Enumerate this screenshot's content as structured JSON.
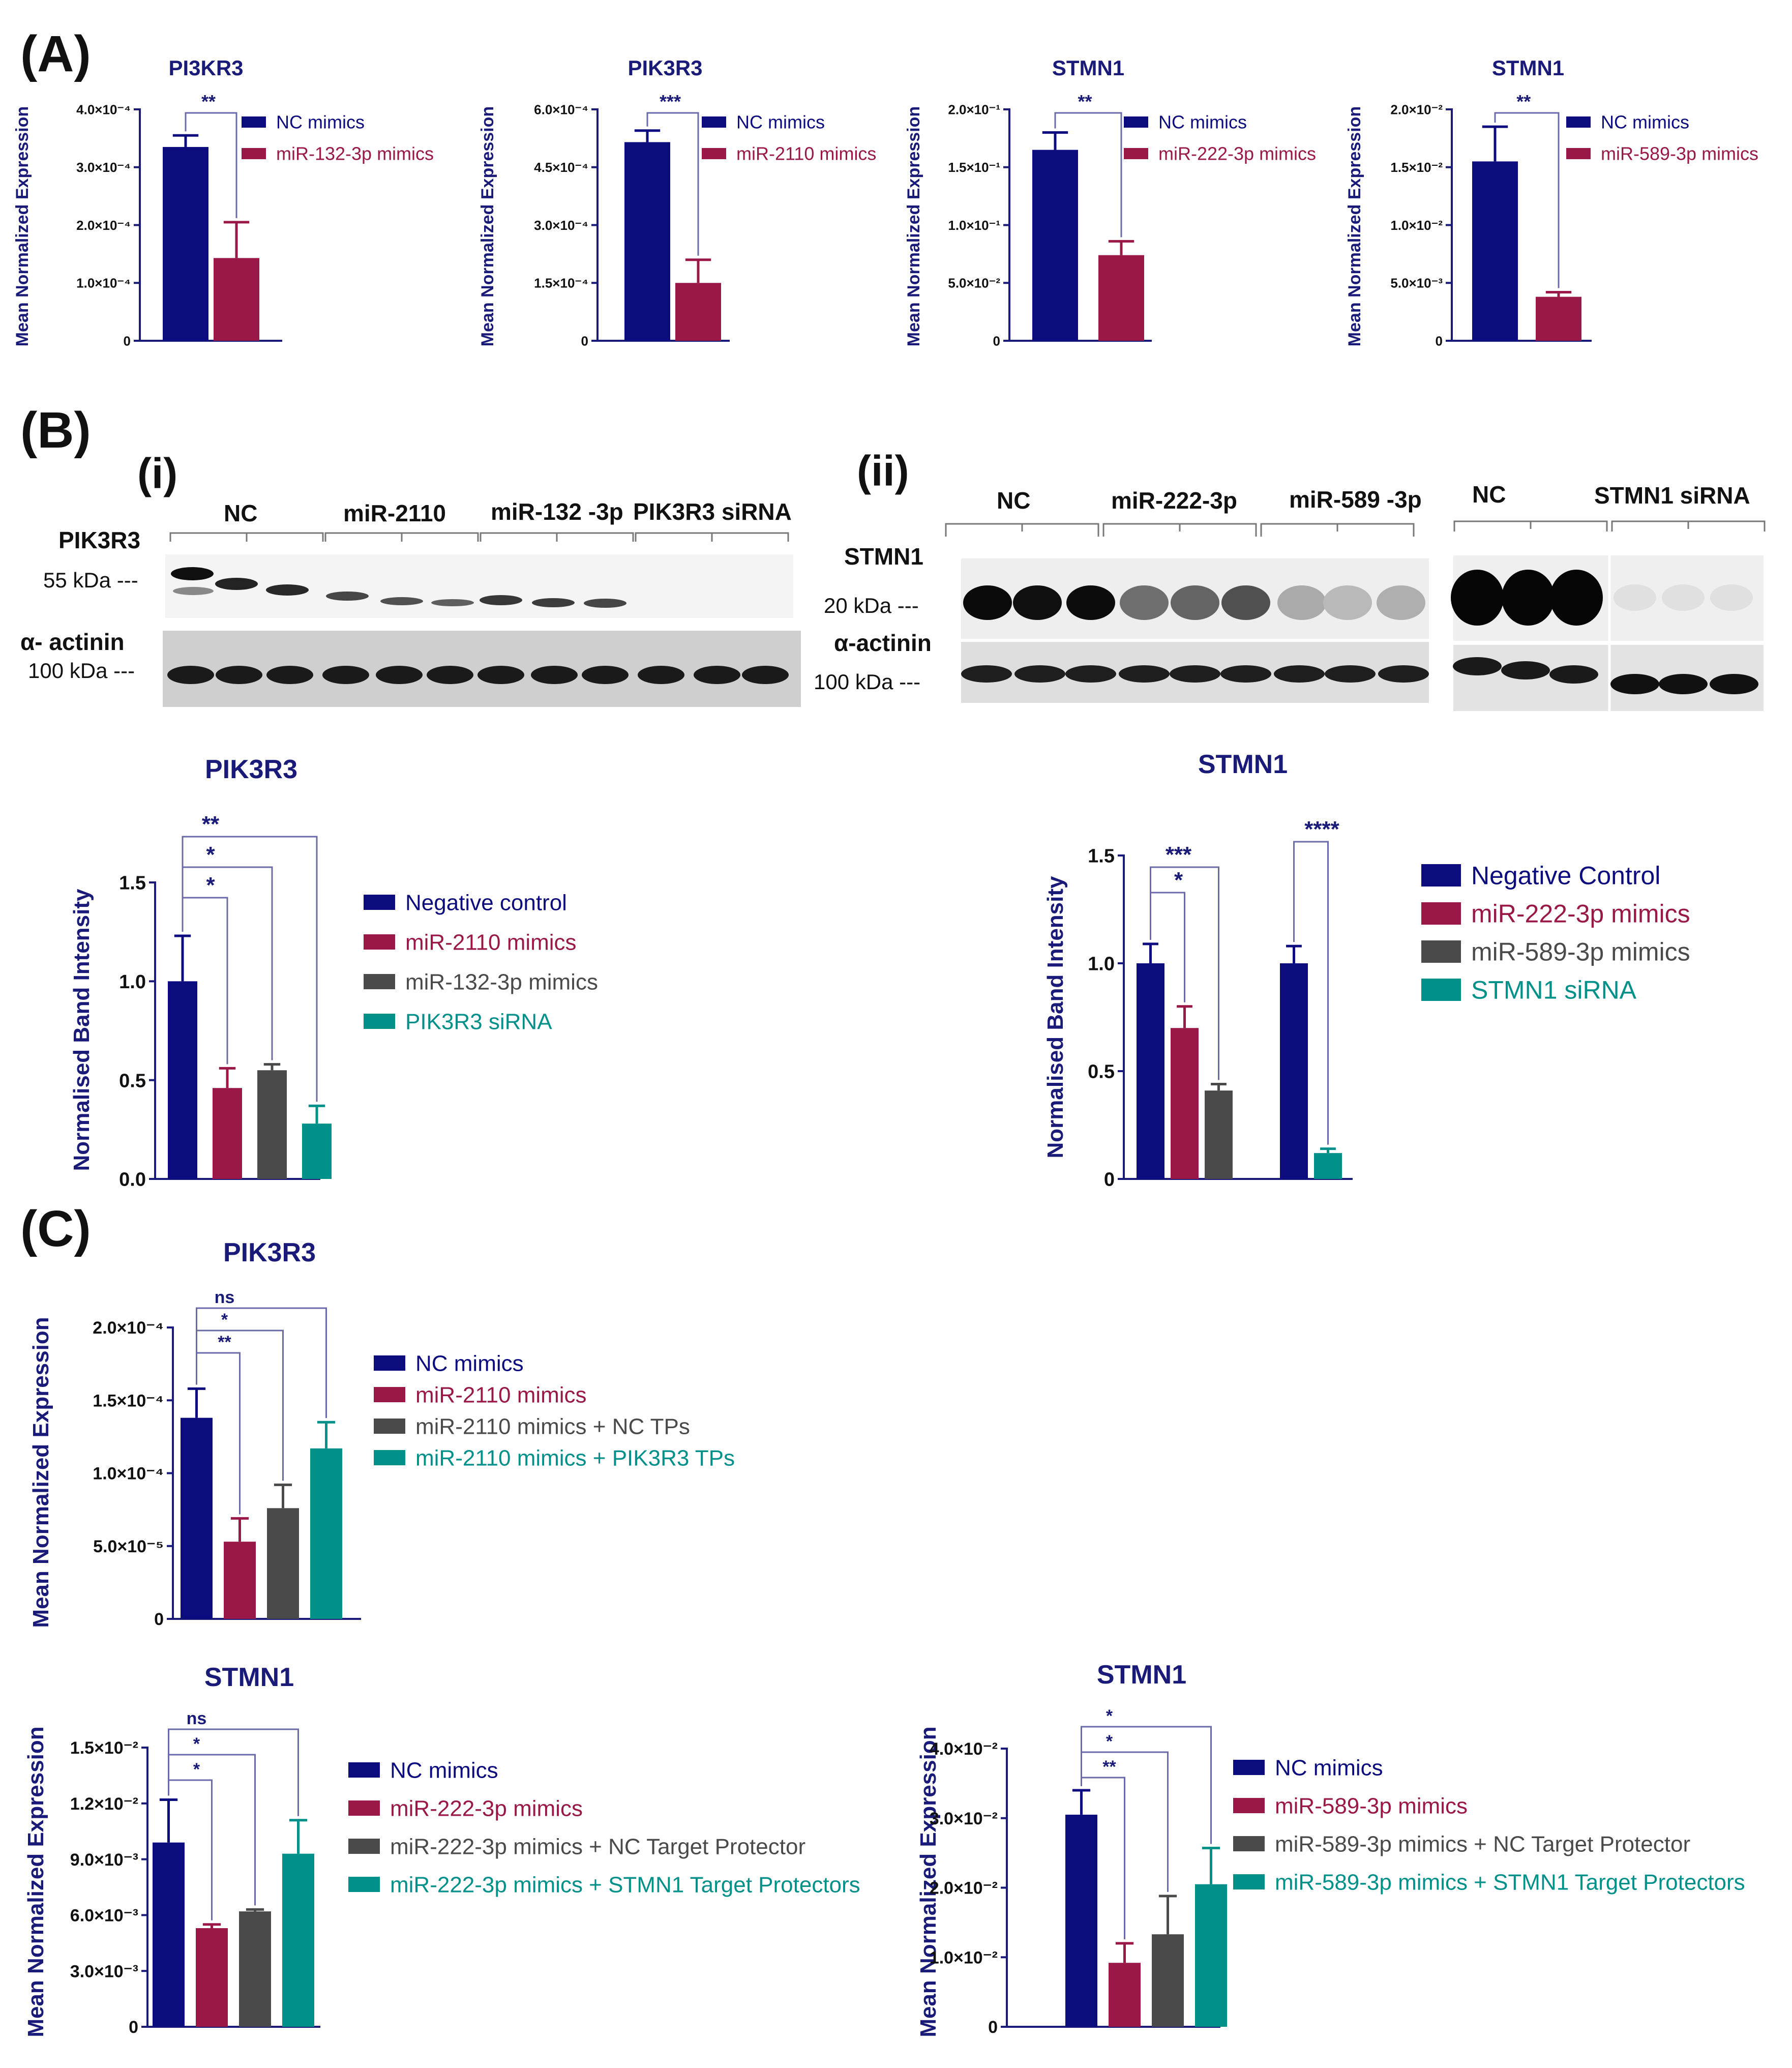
{
  "colors": {
    "navy": "#0c0c7e",
    "crimson": "#9a1848",
    "gray": "#4a4a4a",
    "teal": "#00908a",
    "axis": "#1a1a78"
  },
  "panels": {
    "A": "(A)",
    "B": "(B)",
    "C": "(C)"
  },
  "blot_i": {
    "label": "(i)",
    "groups": [
      "NC",
      "miR-2110",
      "miR-132 -3p",
      "PIK3R3 siRNA"
    ],
    "protein": "PIK3R3",
    "protein_kda": "55 kDa ---",
    "loading": "α- actinin",
    "loading_kda": "100 kDa ---"
  },
  "blot_ii": {
    "label": "(ii)",
    "groups": [
      "NC",
      "miR-222-3p",
      "miR-589 -3p"
    ],
    "groups2": [
      "NC",
      "STMN1 siRNA"
    ],
    "protein": "STMN1",
    "protein_kda": "20 kDa ---",
    "loading": "α-actinin",
    "loading_kda": "100 kDa ---"
  },
  "chart_data": [
    {
      "id": "A1",
      "panel": "A",
      "type": "bar",
      "title": "PI3KR3",
      "ylabel": "Mean Normalized Expression",
      "ylim": [
        0,
        0.0004
      ],
      "yticks": [
        "0",
        "1.0×10⁻⁴",
        "2.0×10⁻⁴",
        "3.0×10⁻⁴",
        "4.0×10⁻⁴"
      ],
      "series": [
        {
          "name": "NC mimics",
          "value": 0.000335,
          "error": 2e-05,
          "color": "navy"
        },
        {
          "name": "miR-132-3p mimics",
          "value": 0.000143,
          "error": 6.2e-05,
          "color": "crimson"
        }
      ],
      "significance": [
        {
          "from": 0,
          "to": 1,
          "label": "**"
        }
      ]
    },
    {
      "id": "A2",
      "panel": "A",
      "type": "bar",
      "title": "PIK3R3",
      "ylabel": "Mean Normalized Expression",
      "ylim": [
        0,
        0.0006
      ],
      "yticks": [
        "0",
        "1.5×10⁻⁴",
        "3.0×10⁻⁴",
        "4.5×10⁻⁴",
        "6.0×10⁻⁴"
      ],
      "series": [
        {
          "name": "NC mimics",
          "value": 0.000515,
          "error": 3e-05,
          "color": "navy"
        },
        {
          "name": "miR-2110 mimics",
          "value": 0.00015,
          "error": 6e-05,
          "color": "crimson"
        }
      ],
      "significance": [
        {
          "from": 0,
          "to": 1,
          "label": "***"
        }
      ]
    },
    {
      "id": "A3",
      "panel": "A",
      "type": "bar",
      "title": "STMN1",
      "ylabel": "Mean Normalized Expression",
      "ylim": [
        0,
        0.2
      ],
      "yticks": [
        "0",
        "5.0×10⁻²",
        "1.0×10⁻¹",
        "1.5×10⁻¹",
        "2.0×10⁻¹"
      ],
      "series": [
        {
          "name": "NC mimics",
          "value": 0.165,
          "error": 0.015,
          "color": "navy"
        },
        {
          "name": "miR-222-3p mimics",
          "value": 0.074,
          "error": 0.012,
          "color": "crimson"
        }
      ],
      "significance": [
        {
          "from": 0,
          "to": 1,
          "label": "**"
        }
      ]
    },
    {
      "id": "A4",
      "panel": "A",
      "type": "bar",
      "title": "STMN1",
      "ylabel": "Mean Normalized Expression",
      "ylim": [
        0,
        0.02
      ],
      "yticks": [
        "0",
        "5.0×10⁻³",
        "1.0×10⁻²",
        "1.5×10⁻²",
        "2.0×10⁻²"
      ],
      "series": [
        {
          "name": "NC mimics",
          "value": 0.0155,
          "error": 0.003,
          "color": "navy"
        },
        {
          "name": "miR-589-3p mimics",
          "value": 0.0038,
          "error": 0.0004,
          "color": "crimson"
        }
      ],
      "significance": [
        {
          "from": 0,
          "to": 1,
          "label": "**"
        }
      ]
    },
    {
      "id": "B1",
      "panel": "B",
      "type": "bar",
      "title": "PIK3R3",
      "ylabel": "Normalised Band Intensity",
      "ylim": [
        0,
        1.5
      ],
      "yticks": [
        "0.0",
        "0.5",
        "1.0",
        "1.5"
      ],
      "series": [
        {
          "name": "Negative control",
          "value": 1.0,
          "error": 0.23,
          "color": "navy"
        },
        {
          "name": "miR-2110 mimics",
          "value": 0.46,
          "error": 0.1,
          "color": "crimson"
        },
        {
          "name": "miR-132-3p mimics",
          "value": 0.55,
          "error": 0.03,
          "color": "gray"
        },
        {
          "name": "PIK3R3 siRNA",
          "value": 0.28,
          "error": 0.09,
          "color": "teal"
        }
      ],
      "significance": [
        {
          "from": 0,
          "to": 1,
          "label": "*"
        },
        {
          "from": 0,
          "to": 2,
          "label": "*"
        },
        {
          "from": 0,
          "to": 3,
          "label": "**"
        }
      ]
    },
    {
      "id": "B2",
      "panel": "B",
      "type": "bar",
      "title": "STMN1",
      "ylabel": "Normalised Band Intensity",
      "ylim": [
        0,
        1.5
      ],
      "yticks": [
        "0",
        "0.5",
        "1.0",
        "1.5"
      ],
      "series": [
        {
          "name": "Negative Control",
          "value": 1.0,
          "error": 0.09,
          "color": "navy"
        },
        {
          "name": "miR-222-3p mimics",
          "value": 0.7,
          "error": 0.1,
          "color": "crimson"
        },
        {
          "name": "miR-589-3p mimics",
          "value": 0.41,
          "error": 0.03,
          "color": "gray"
        },
        {
          "name": "Negative Control",
          "value": 1.0,
          "error": 0.08,
          "color": "navy",
          "legend": false
        },
        {
          "name": "STMN1 siRNA",
          "value": 0.12,
          "error": 0.02,
          "color": "teal"
        }
      ],
      "significance": [
        {
          "from": 0,
          "to": 1,
          "label": "*"
        },
        {
          "from": 0,
          "to": 2,
          "label": "***"
        },
        {
          "from": 3,
          "to": 4,
          "label": "****"
        }
      ]
    },
    {
      "id": "C1",
      "panel": "C",
      "type": "bar",
      "title": "PIK3R3",
      "ylabel": "Mean Normalized Expression",
      "ylim": [
        0,
        0.0002
      ],
      "yticks": [
        "0",
        "5.0×10⁻⁵",
        "1.0×10⁻⁴",
        "1.5×10⁻⁴",
        "2.0×10⁻⁴"
      ],
      "series": [
        {
          "name": "NC mimics",
          "value": 0.000138,
          "error": 2e-05,
          "color": "navy"
        },
        {
          "name": "miR-2110 mimics",
          "value": 5.3e-05,
          "error": 1.6e-05,
          "color": "crimson"
        },
        {
          "name": "miR-2110 mimics + NC TPs",
          "value": 7.6e-05,
          "error": 1.6e-05,
          "color": "gray"
        },
        {
          "name": "miR-2110 mimics + PIK3R3 TPs",
          "value": 0.000117,
          "error": 1.8e-05,
          "color": "teal"
        }
      ],
      "significance": [
        {
          "from": 0,
          "to": 1,
          "label": "**"
        },
        {
          "from": 0,
          "to": 2,
          "label": "*"
        },
        {
          "from": 0,
          "to": 3,
          "label": "ns"
        }
      ]
    },
    {
      "id": "C2",
      "panel": "C",
      "type": "bar",
      "title": "STMN1",
      "ylabel": "Mean Normalized Expression",
      "ylim": [
        0,
        0.015
      ],
      "yticks": [
        "0",
        "3.0×10⁻³",
        "6.0×10⁻³",
        "9.0×10⁻³",
        "1.2×10⁻²",
        "1.5×10⁻²"
      ],
      "series": [
        {
          "name": "NC mimics",
          "value": 0.0099,
          "error": 0.0023,
          "color": "navy"
        },
        {
          "name": "miR-222-3p mimics",
          "value": 0.0053,
          "error": 0.0002,
          "color": "crimson"
        },
        {
          "name": "miR-222-3p mimics + NC Target Protector",
          "value": 0.0062,
          "error": 0.0001,
          "color": "gray"
        },
        {
          "name": "miR-222-3p mimics + STMN1 Target Protectors",
          "value": 0.0093,
          "error": 0.0018,
          "color": "teal"
        }
      ],
      "significance": [
        {
          "from": 0,
          "to": 1,
          "label": "*"
        },
        {
          "from": 0,
          "to": 2,
          "label": "*"
        },
        {
          "from": 0,
          "to": 3,
          "label": "ns"
        }
      ]
    },
    {
      "id": "C3",
      "panel": "C",
      "type": "bar",
      "title": "STMN1",
      "ylabel": "Mean Normalized Expression",
      "ylim": [
        0,
        0.04
      ],
      "yticks": [
        "0",
        "1.0×10⁻²",
        "2.0×10⁻²",
        "3.0×10⁻²",
        "4.0×10⁻²"
      ],
      "series": [
        {
          "name": "NC mimics",
          "value": 0.0305,
          "error": 0.0035,
          "color": "navy"
        },
        {
          "name": "miR-589-3p mimics",
          "value": 0.0092,
          "error": 0.0028,
          "color": "crimson"
        },
        {
          "name": "miR-589-3p mimics + NC Target Protector",
          "value": 0.0133,
          "error": 0.0055,
          "color": "gray"
        },
        {
          "name": "miR-589-3p mimics + STMN1 Target Protectors",
          "value": 0.0205,
          "error": 0.0052,
          "color": "teal"
        }
      ],
      "significance": [
        {
          "from": 0,
          "to": 1,
          "label": "**"
        },
        {
          "from": 0,
          "to": 2,
          "label": "*"
        },
        {
          "from": 0,
          "to": 3,
          "label": "*"
        }
      ]
    }
  ]
}
